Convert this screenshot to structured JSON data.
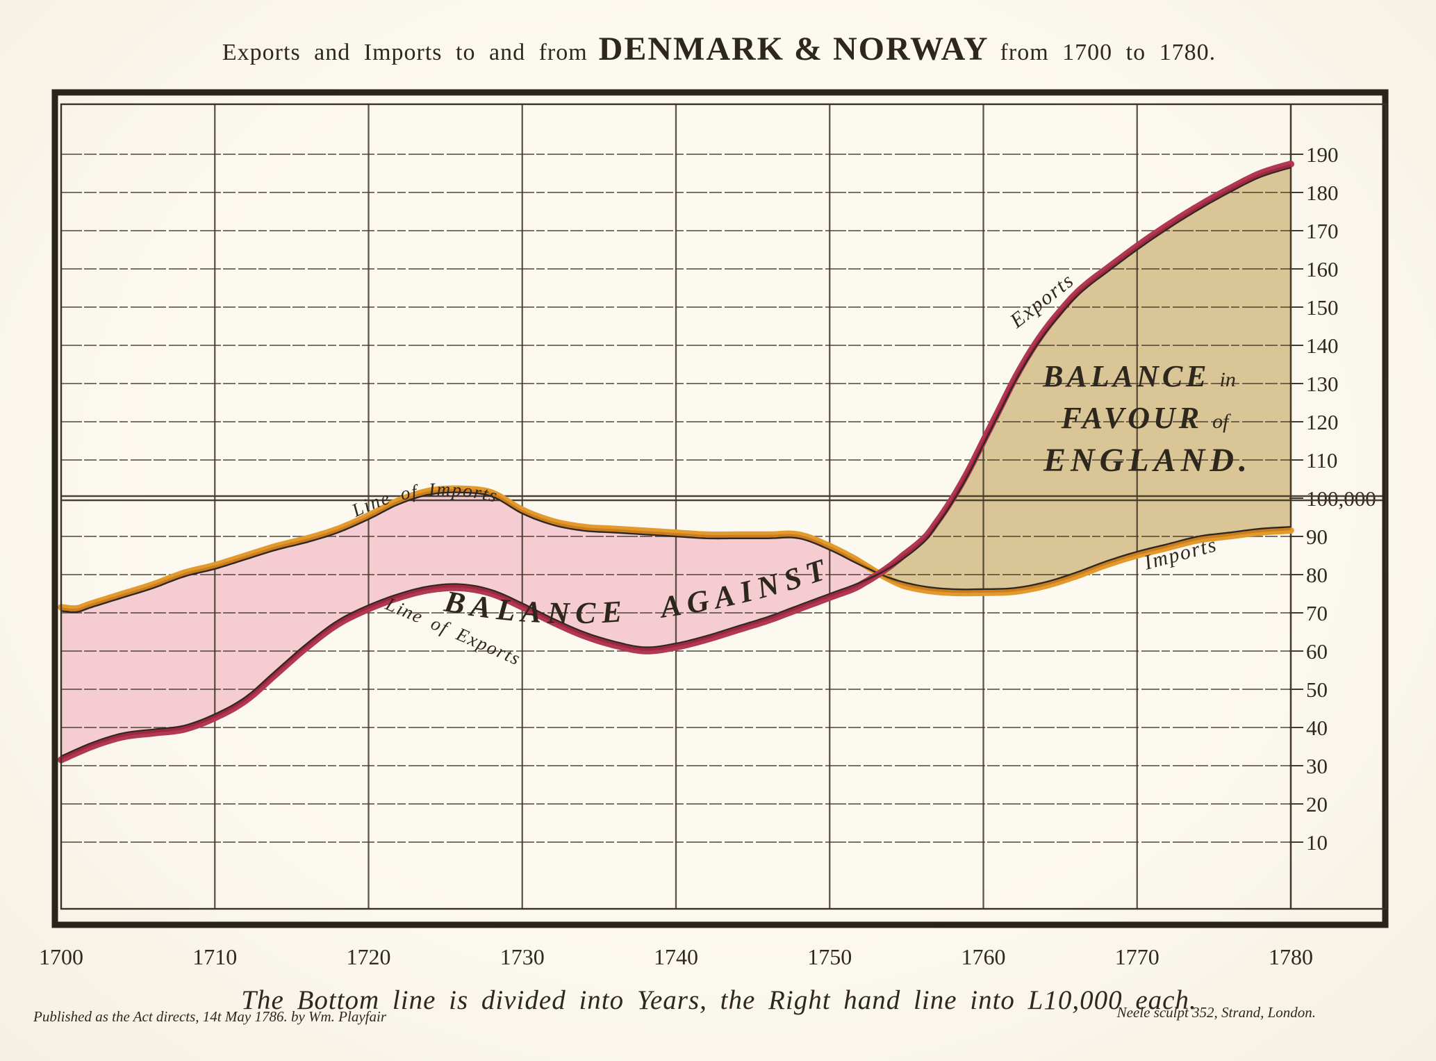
{
  "title": {
    "prefix": "Exports and Imports to and from",
    "emphasis": "DENMARK & NORWAY",
    "suffix": "from 1700 to 1780."
  },
  "footer": {
    "caption": "The Bottom line is divided into Years, the Right hand line into L10,000 each.",
    "published": "Published as the Act directs, 14t May 1786. by Wm. Playfair",
    "engraver": "Neele sculpt 352, Strand, London."
  },
  "annotations": {
    "line_of_imports": "Line of Imports",
    "line_of_exports": "Line of Exports",
    "balance_against": "BALANCE AGAINST",
    "balance_word": "BALANCE",
    "in_word": "in",
    "favour_word": "FAVOUR",
    "of_word": "of",
    "england_word": "ENGLAND.",
    "exports_curve_label": "Exports",
    "imports_curve_label": "Imports"
  },
  "colors": {
    "paper": "#fbf7ec",
    "ink": "#2f2820",
    "grid": "#44382a",
    "pink_fill": "#f4ccd1",
    "tan_fill": "#d9c596",
    "imports_band": "#e29a2c",
    "imports_band_inner": "#c5761e",
    "exports_band": "#b23751",
    "exports_band_inner": "#97233c"
  },
  "chart_data": {
    "type": "area",
    "title": "Exports and Imports to and from DENMARK & NORWAY from 1700 to 1780",
    "xlabel": "Years",
    "ylabel": "L10,000 each",
    "x_axis": {
      "min": 1700,
      "max": 1780,
      "ticks": [
        1700,
        1710,
        1720,
        1730,
        1740,
        1750,
        1760,
        1770,
        1780
      ]
    },
    "y_axis": {
      "min": 0,
      "max": 200,
      "tick_step": 10,
      "ticks": [
        10,
        20,
        30,
        40,
        50,
        60,
        70,
        80,
        90,
        100,
        110,
        120,
        130,
        140,
        150,
        160,
        170,
        180,
        190
      ],
      "special_tick_value": 100,
      "special_tick_label": "100,000"
    },
    "grid": true,
    "crossing_year_approx": 1753,
    "series": [
      {
        "name": "Line of Imports",
        "color": "#e29a2c",
        "points": [
          [
            1700,
            70.5
          ],
          [
            1701,
            70.2
          ],
          [
            1702,
            71.5
          ],
          [
            1704,
            74
          ],
          [
            1706,
            76.5
          ],
          [
            1708,
            79.5
          ],
          [
            1710,
            81.5
          ],
          [
            1712,
            84
          ],
          [
            1714,
            86.5
          ],
          [
            1716,
            88.5
          ],
          [
            1718,
            91
          ],
          [
            1720,
            94.5
          ],
          [
            1722,
            98.5
          ],
          [
            1724,
            101
          ],
          [
            1726,
            101.5
          ],
          [
            1728,
            100.5
          ],
          [
            1730,
            96
          ],
          [
            1732,
            93
          ],
          [
            1734,
            91.5
          ],
          [
            1736,
            91
          ],
          [
            1738,
            90.5
          ],
          [
            1740,
            90
          ],
          [
            1742,
            89.5
          ],
          [
            1744,
            89.5
          ],
          [
            1746,
            89.5
          ],
          [
            1748,
            89.5
          ],
          [
            1750,
            86.5
          ],
          [
            1752,
            82.5
          ],
          [
            1754,
            79
          ],
          [
            1756,
            77
          ],
          [
            1758,
            76.2
          ],
          [
            1760,
            76.2
          ],
          [
            1762,
            76.5
          ],
          [
            1764,
            78
          ],
          [
            1766,
            80.5
          ],
          [
            1768,
            83.5
          ],
          [
            1770,
            86
          ],
          [
            1772,
            88
          ],
          [
            1774,
            90
          ],
          [
            1776,
            91
          ],
          [
            1778,
            92
          ],
          [
            1780,
            92.5
          ]
        ]
      },
      {
        "name": "Line of Exports",
        "color": "#b23751",
        "points": [
          [
            1700,
            32.5
          ],
          [
            1702,
            36
          ],
          [
            1704,
            38.5
          ],
          [
            1706,
            39.5
          ],
          [
            1708,
            40.5
          ],
          [
            1710,
            43.5
          ],
          [
            1712,
            48
          ],
          [
            1714,
            55
          ],
          [
            1716,
            62
          ],
          [
            1718,
            68
          ],
          [
            1720,
            72
          ],
          [
            1722,
            75
          ],
          [
            1724,
            77
          ],
          [
            1726,
            77.5
          ],
          [
            1728,
            76
          ],
          [
            1730,
            72.5
          ],
          [
            1732,
            68.5
          ],
          [
            1734,
            65
          ],
          [
            1736,
            62.5
          ],
          [
            1738,
            61
          ],
          [
            1740,
            62
          ],
          [
            1742,
            64
          ],
          [
            1744,
            66.5
          ],
          [
            1746,
            69
          ],
          [
            1748,
            72
          ],
          [
            1750,
            75
          ],
          [
            1752,
            78
          ],
          [
            1754,
            82
          ],
          [
            1756,
            88
          ],
          [
            1757,
            93
          ],
          [
            1758,
            99
          ],
          [
            1759,
            106
          ],
          [
            1760,
            114
          ],
          [
            1761,
            122
          ],
          [
            1762,
            130
          ],
          [
            1763,
            137
          ],
          [
            1764,
            143
          ],
          [
            1765,
            148
          ],
          [
            1766,
            152.5
          ],
          [
            1767,
            156
          ],
          [
            1768,
            159
          ],
          [
            1770,
            165
          ],
          [
            1772,
            170.5
          ],
          [
            1774,
            175.5
          ],
          [
            1776,
            180
          ],
          [
            1778,
            184
          ],
          [
            1780,
            186.5
          ]
        ]
      }
    ],
    "regions": [
      {
        "label": "BALANCE AGAINST",
        "fill": "#f4ccd1",
        "from_year": 1700,
        "to_year": 1753,
        "description": "imports exceed exports"
      },
      {
        "label": "BALANCE in FAVOUR of ENGLAND.",
        "fill": "#d9c596",
        "from_year": 1753,
        "to_year": 1780,
        "description": "exports exceed imports"
      }
    ]
  }
}
